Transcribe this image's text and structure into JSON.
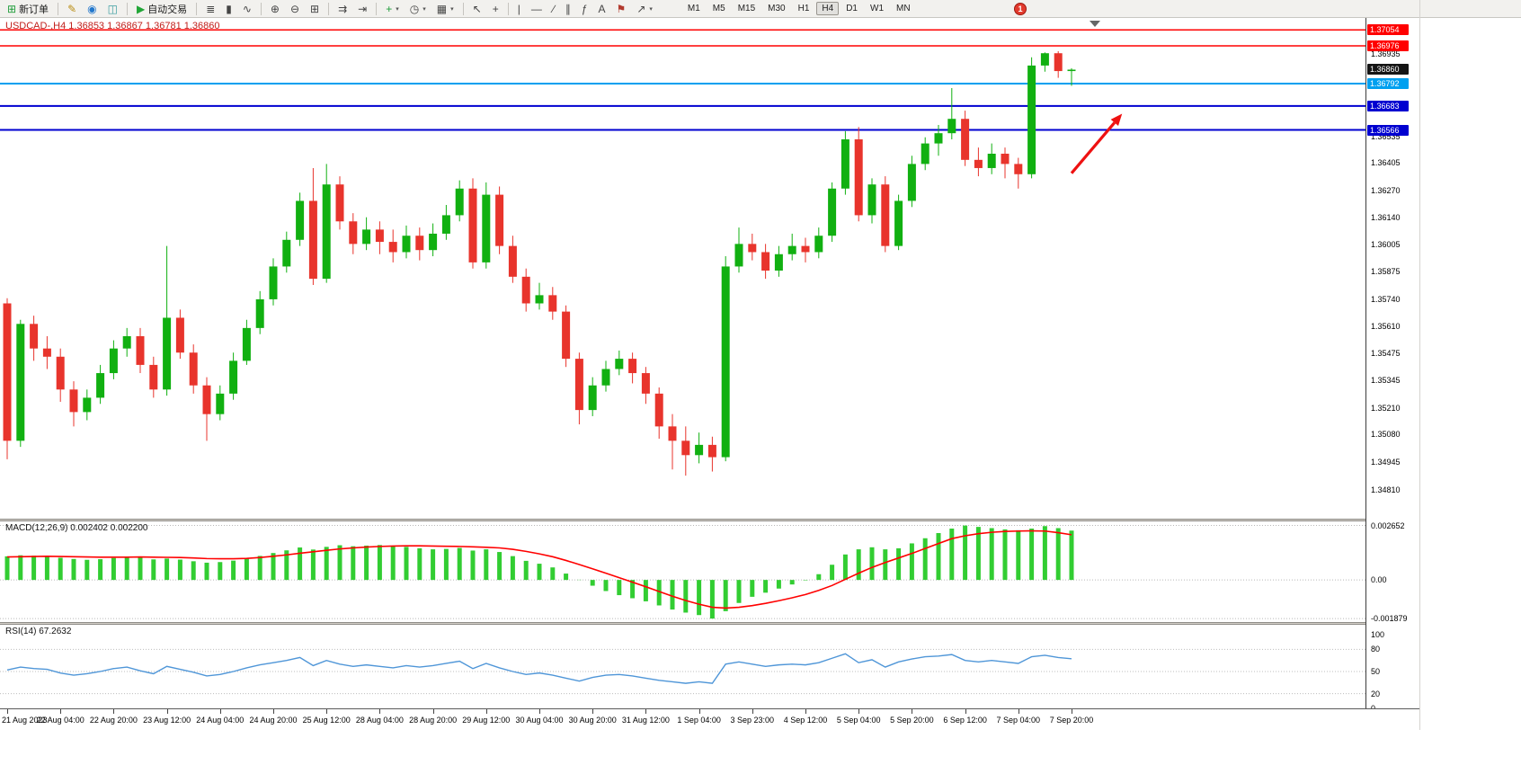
{
  "toolbar": {
    "groups": [
      {
        "items": [
          {
            "name": "new-order-button",
            "icon": "new-order-icon",
            "glyph": "⊞",
            "glyph_color": "#1f9d3a",
            "label": "新订单"
          }
        ]
      },
      {
        "items": [
          {
            "name": "metaeditor-button",
            "icon": "metaeditor-icon",
            "glyph": "✎",
            "glyph_color": "#b98c12"
          },
          {
            "name": "market-watch-button",
            "icon": "market-watch-icon",
            "glyph": "◉",
            "glyph_color": "#2277cc"
          },
          {
            "name": "navigator-button",
            "icon": "navigator-icon",
            "glyph": "◫",
            "glyph_color": "#3a9da0"
          }
        ]
      },
      {
        "items": [
          {
            "name": "auto-trading-button",
            "icon": "play-icon",
            "glyph": "▶",
            "glyph_color": "#21a637",
            "label": "自动交易"
          }
        ]
      },
      {
        "items": [
          {
            "name": "bar-chart-button",
            "icon": "ohlc-bars-icon",
            "glyph": "≣"
          },
          {
            "name": "candlestick-button",
            "icon": "candlestick-icon",
            "glyph": "▮"
          },
          {
            "name": "line-chart-button",
            "icon": "line-chart-icon",
            "glyph": "∿"
          }
        ]
      },
      {
        "items": [
          {
            "name": "zoom-in-button",
            "icon": "zoom-in-icon",
            "glyph": "⊕"
          },
          {
            "name": "zoom-out-button",
            "icon": "zoom-out-icon",
            "glyph": "⊖"
          },
          {
            "name": "tile-windows-button",
            "icon": "tile-windows-icon",
            "glyph": "⊞"
          }
        ]
      },
      {
        "items": [
          {
            "name": "auto-scroll-button",
            "icon": "auto-scroll-icon",
            "glyph": "⇉"
          },
          {
            "name": "chart-shift-button",
            "icon": "chart-shift-icon",
            "glyph": "⇥"
          }
        ]
      },
      {
        "items": [
          {
            "name": "indicators-button",
            "icon": "indicators-icon",
            "glyph": "+",
            "glyph_color": "#1f9d3a",
            "caret": true
          },
          {
            "name": "periods-button",
            "icon": "clock-icon",
            "glyph": "◷",
            "caret": true
          },
          {
            "name": "templates-button",
            "icon": "template-icon",
            "glyph": "▦",
            "caret": true
          }
        ]
      },
      {
        "items": [
          {
            "name": "cursor-button",
            "icon": "cursor-icon",
            "glyph": "↖"
          },
          {
            "name": "crosshair-button",
            "icon": "crosshair-icon",
            "glyph": "+"
          }
        ]
      },
      {
        "items": [
          {
            "name": "vertical-line-button",
            "icon": "vertical-line-icon",
            "glyph": "|"
          },
          {
            "name": "horizontal-line-button",
            "icon": "horizontal-line-icon",
            "glyph": "―"
          },
          {
            "name": "trendline-button",
            "icon": "trendline-icon",
            "glyph": "∕"
          },
          {
            "name": "channel-button",
            "icon": "channel-icon",
            "glyph": "∥"
          },
          {
            "name": "fibonacci-button",
            "icon": "fibonacci-icon",
            "glyph": "ƒ"
          },
          {
            "name": "text-button",
            "icon": "text-icon",
            "glyph": "A"
          },
          {
            "name": "label-button",
            "icon": "label-icon",
            "glyph": "⚑",
            "glyph_color": "#b23a2e"
          },
          {
            "name": "arrows-button",
            "icon": "arrow-objects-icon",
            "glyph": "↗",
            "caret": true
          }
        ]
      }
    ],
    "timeframes": [
      {
        "label": "M1"
      },
      {
        "label": "M5"
      },
      {
        "label": "M15"
      },
      {
        "label": "M30"
      },
      {
        "label": "H1"
      },
      {
        "label": "H4",
        "active": true
      },
      {
        "label": "D1"
      },
      {
        "label": "W1"
      },
      {
        "label": "MN"
      }
    ],
    "notification_count": "1"
  },
  "price_axis": {
    "badges": [
      {
        "text": "1.37054",
        "price": 1.37054,
        "bg": "#ff0000"
      },
      {
        "text": "1.36976",
        "price": 1.36976,
        "bg": "#ff0000"
      },
      {
        "text": "1.36860",
        "price": 1.3686,
        "bg": "#151515",
        "name": "bid-price-badge"
      },
      {
        "text": "1.36792",
        "price": 1.36792,
        "bg": "#00a0f0"
      },
      {
        "text": "1.36683",
        "price": 1.36683,
        "bg": "#0000d0"
      },
      {
        "text": "1.36566",
        "price": 1.36566,
        "bg": "#0000d0"
      }
    ],
    "ticks": [
      "1.36935",
      "1.36535",
      "1.36405",
      "1.36270",
      "1.36140",
      "1.36005",
      "1.35875",
      "1.35740",
      "1.35610",
      "1.35475",
      "1.35345",
      "1.35210",
      "1.35080",
      "1.34945",
      "1.34810"
    ]
  },
  "chart_data": {
    "type": "candlestick",
    "symbol": "USDCAD-",
    "timeframe": "H4",
    "title": "USDCAD-,H4 1.36853 1.36867 1.36781 1.36860",
    "ohlc_display": {
      "open": "1.36853",
      "high": "1.36867",
      "low": "1.36781",
      "close": "1.36860"
    },
    "ylim": [
      1.3467,
      1.3709
    ],
    "colors": {
      "up": "#11b011",
      "down": "#e8342c",
      "macd_hist": "#32cd32",
      "macd_signal": "#ff0000",
      "rsi_line": "#4f96d8"
    },
    "hlines": [
      {
        "price": 1.37054,
        "color": "#ff0000",
        "width": 1.5
      },
      {
        "price": 1.36976,
        "color": "#ff0000",
        "width": 1.5
      },
      {
        "price": 1.36792,
        "color": "#00a0f0",
        "width": 2
      },
      {
        "price": 1.36683,
        "color": "#0000d0",
        "width": 2
      },
      {
        "price": 1.36566,
        "color": "#0000d0",
        "width": 2
      }
    ],
    "arrow": {
      "from": {
        "ci": 80,
        "price": 1.36355
      },
      "to": {
        "ci": 83.8,
        "price": 1.36645
      },
      "color": "#ee1111"
    },
    "candles": [
      [
        1.3572,
        1.35745,
        1.3496,
        1.3505
      ],
      [
        1.3505,
        1.3564,
        1.3502,
        1.3562
      ],
      [
        1.3562,
        1.3566,
        1.3544,
        1.355
      ],
      [
        1.355,
        1.3556,
        1.354,
        1.3546
      ],
      [
        1.3546,
        1.355,
        1.3524,
        1.353
      ],
      [
        1.353,
        1.3534,
        1.3512,
        1.3519
      ],
      [
        1.3519,
        1.353,
        1.3515,
        1.3526
      ],
      [
        1.3526,
        1.3542,
        1.3523,
        1.3538
      ],
      [
        1.3538,
        1.3554,
        1.3535,
        1.355
      ],
      [
        1.355,
        1.356,
        1.3546,
        1.3556
      ],
      [
        1.3556,
        1.356,
        1.3538,
        1.3542
      ],
      [
        1.3542,
        1.3546,
        1.3526,
        1.353
      ],
      [
        1.353,
        1.36,
        1.3527,
        1.3565
      ],
      [
        1.3565,
        1.3569,
        1.3545,
        1.3548
      ],
      [
        1.3548,
        1.3552,
        1.3528,
        1.3532
      ],
      [
        1.3532,
        1.3536,
        1.3505,
        1.3518
      ],
      [
        1.3518,
        1.3532,
        1.3515,
        1.3528
      ],
      [
        1.3528,
        1.3548,
        1.3525,
        1.3544
      ],
      [
        1.3544,
        1.3564,
        1.3542,
        1.356
      ],
      [
        1.356,
        1.3578,
        1.3557,
        1.3574
      ],
      [
        1.3574,
        1.3594,
        1.3571,
        1.359
      ],
      [
        1.359,
        1.3607,
        1.3587,
        1.3603
      ],
      [
        1.3603,
        1.3626,
        1.36,
        1.3622
      ],
      [
        1.3622,
        1.3638,
        1.3581,
        1.3584
      ],
      [
        1.3584,
        1.364,
        1.3582,
        1.363
      ],
      [
        1.363,
        1.3634,
        1.3608,
        1.3612
      ],
      [
        1.3612,
        1.3616,
        1.3596,
        1.3601
      ],
      [
        1.3601,
        1.3614,
        1.3598,
        1.3608
      ],
      [
        1.3608,
        1.3612,
        1.3596,
        1.3602
      ],
      [
        1.3602,
        1.3608,
        1.3592,
        1.3597
      ],
      [
        1.3597,
        1.361,
        1.3594,
        1.3605
      ],
      [
        1.3605,
        1.3609,
        1.3593,
        1.3598
      ],
      [
        1.3598,
        1.3611,
        1.3595,
        1.3606
      ],
      [
        1.3606,
        1.362,
        1.3603,
        1.3615
      ],
      [
        1.3615,
        1.3632,
        1.3612,
        1.3628
      ],
      [
        1.3628,
        1.3633,
        1.3589,
        1.3592
      ],
      [
        1.3592,
        1.3631,
        1.3589,
        1.3625
      ],
      [
        1.3625,
        1.3629,
        1.3596,
        1.36
      ],
      [
        1.36,
        1.3605,
        1.3582,
        1.3585
      ],
      [
        1.3585,
        1.3589,
        1.3568,
        1.3572
      ],
      [
        1.3572,
        1.3582,
        1.3569,
        1.3576
      ],
      [
        1.3576,
        1.358,
        1.3564,
        1.3568
      ],
      [
        1.3568,
        1.3571,
        1.3541,
        1.3545
      ],
      [
        1.3545,
        1.3548,
        1.3513,
        1.352
      ],
      [
        1.352,
        1.3536,
        1.3517,
        1.3532
      ],
      [
        1.3532,
        1.3544,
        1.3529,
        1.354
      ],
      [
        1.354,
        1.3549,
        1.3537,
        1.3545
      ],
      [
        1.3545,
        1.3548,
        1.3533,
        1.3538
      ],
      [
        1.3538,
        1.3541,
        1.3523,
        1.3528
      ],
      [
        1.3528,
        1.3531,
        1.3506,
        1.3512
      ],
      [
        1.3512,
        1.3518,
        1.3491,
        1.3505
      ],
      [
        1.3505,
        1.3512,
        1.3488,
        1.3498
      ],
      [
        1.3498,
        1.3509,
        1.3494,
        1.3503
      ],
      [
        1.3503,
        1.3507,
        1.349,
        1.3497
      ],
      [
        1.3497,
        1.3595,
        1.3495,
        1.359
      ],
      [
        1.359,
        1.3609,
        1.3587,
        1.3601
      ],
      [
        1.3601,
        1.3606,
        1.3593,
        1.3597
      ],
      [
        1.3597,
        1.3601,
        1.3584,
        1.3588
      ],
      [
        1.3588,
        1.36,
        1.3585,
        1.3596
      ],
      [
        1.3596,
        1.3606,
        1.3593,
        1.36
      ],
      [
        1.36,
        1.3604,
        1.3592,
        1.3597
      ],
      [
        1.3597,
        1.3609,
        1.3594,
        1.3605
      ],
      [
        1.3605,
        1.3631,
        1.3602,
        1.3628
      ],
      [
        1.3628,
        1.3656,
        1.3625,
        1.3652
      ],
      [
        1.3652,
        1.3658,
        1.3612,
        1.3615
      ],
      [
        1.3615,
        1.3633,
        1.3611,
        1.363
      ],
      [
        1.363,
        1.3634,
        1.3597,
        1.36
      ],
      [
        1.36,
        1.3625,
        1.3598,
        1.3622
      ],
      [
        1.3622,
        1.3644,
        1.3619,
        1.364
      ],
      [
        1.364,
        1.3653,
        1.3637,
        1.365
      ],
      [
        1.365,
        1.3659,
        1.3644,
        1.3655
      ],
      [
        1.3655,
        1.3677,
        1.3652,
        1.3662
      ],
      [
        1.3662,
        1.3666,
        1.3639,
        1.3642
      ],
      [
        1.3642,
        1.3648,
        1.3634,
        1.3638
      ],
      [
        1.3638,
        1.365,
        1.3635,
        1.3645
      ],
      [
        1.3645,
        1.3648,
        1.3633,
        1.364
      ],
      [
        1.364,
        1.3643,
        1.3628,
        1.3635
      ],
      [
        1.3635,
        1.3692,
        1.3633,
        1.3688
      ],
      [
        1.3688,
        1.36944,
        1.3685,
        1.3694
      ],
      [
        1.3694,
        1.3695,
        1.3682,
        1.36853
      ],
      [
        1.36853,
        1.36867,
        1.36781,
        1.3686
      ]
    ],
    "time_labels": [
      {
        "text": "21 Aug 2023",
        "ci": 0
      },
      {
        "text": "22 Aug 04:00",
        "ci": 4
      },
      {
        "text": "22 Aug 20:00",
        "ci": 8
      },
      {
        "text": "23 Aug 12:00",
        "ci": 12
      },
      {
        "text": "24 Aug 04:00",
        "ci": 16
      },
      {
        "text": "24 Aug 20:00",
        "ci": 20
      },
      {
        "text": "25 Aug 12:00",
        "ci": 24
      },
      {
        "text": "28 Aug 04:00",
        "ci": 28
      },
      {
        "text": "28 Aug 20:00",
        "ci": 32
      },
      {
        "text": "29 Aug 12:00",
        "ci": 36
      },
      {
        "text": "30 Aug 04:00",
        "ci": 40
      },
      {
        "text": "30 Aug 20:00",
        "ci": 44
      },
      {
        "text": "31 Aug 12:00",
        "ci": 48
      },
      {
        "text": "1 Sep 04:00",
        "ci": 52
      },
      {
        "text": "3 Sep 23:00",
        "ci": 56
      },
      {
        "text": "4 Sep 12:00",
        "ci": 60
      },
      {
        "text": "5 Sep 04:00",
        "ci": 64
      },
      {
        "text": "5 Sep 20:00",
        "ci": 68
      },
      {
        "text": "6 Sep 12:00",
        "ci": 72
      },
      {
        "text": "7 Sep 04:00",
        "ci": 76
      },
      {
        "text": "7 Sep 20:00",
        "ci": 80
      }
    ],
    "macd": {
      "label": "MACD(12,26,9) 0.002402 0.002200",
      "axis_labels": [
        "0.002652",
        "0.00",
        "-0.001879"
      ],
      "grid": [
        0.002652,
        0,
        -0.001879
      ],
      "ylim": [
        -0.00205,
        0.00285
      ],
      "histogram": [
        0.00115,
        0.0012,
        0.00118,
        0.00114,
        0.00108,
        0.00102,
        0.00098,
        0.00101,
        0.00107,
        0.00112,
        0.00108,
        0.001,
        0.00104,
        0.00099,
        0.00091,
        0.00084,
        0.00087,
        0.00094,
        0.00104,
        0.00117,
        0.00131,
        0.00144,
        0.00158,
        0.00148,
        0.00161,
        0.00169,
        0.00164,
        0.00167,
        0.0017,
        0.00166,
        0.00161,
        0.00154,
        0.00149,
        0.00151,
        0.00156,
        0.00143,
        0.00149,
        0.00136,
        0.00116,
        0.00093,
        0.00079,
        0.00061,
        0.00031,
        1e-05,
        -0.00028,
        -0.00054,
        -0.00074,
        -0.00089,
        -0.00104,
        -0.00124,
        -0.00144,
        -0.00159,
        -0.00171,
        -0.00188,
        -0.00152,
        -0.00112,
        -0.00082,
        -0.00062,
        -0.00042,
        -0.00022,
        -2e-05,
        0.00028,
        0.00074,
        0.00124,
        0.00149,
        0.00159,
        0.00149,
        0.00154,
        0.00178,
        0.00203,
        0.00228,
        0.0025,
        0.00265,
        0.00258,
        0.00252,
        0.00246,
        0.00242,
        0.0025,
        0.00262,
        0.00252,
        0.0024
      ],
      "signal": [
        0.00112,
        0.00113,
        0.00114,
        0.00115,
        0.00114,
        0.00113,
        0.00112,
        0.00111,
        0.00111,
        0.00111,
        0.00112,
        0.00111,
        0.0011,
        0.00109,
        0.00107,
        0.00104,
        0.00103,
        0.00103,
        0.00105,
        0.00109,
        0.00115,
        0.00122,
        0.0013,
        0.00137,
        0.00144,
        0.00151,
        0.00156,
        0.0016,
        0.00163,
        0.00165,
        0.00166,
        0.00166,
        0.00165,
        0.00164,
        0.00163,
        0.00161,
        0.00159,
        0.00156,
        0.00149,
        0.00139,
        0.00127,
        0.00113,
        0.00095,
        0.00075,
        0.00054,
        0.00033,
        0.00011,
        -0.00011,
        -0.00033,
        -0.00056,
        -0.00079,
        -0.001,
        -0.00118,
        -0.00133,
        -0.00137,
        -0.00133,
        -0.00125,
        -0.00114,
        -0.00101,
        -0.00087,
        -0.00071,
        -0.00051,
        -0.00027,
        3e-05,
        0.00033,
        0.00061,
        0.00085,
        0.00107,
        0.00129,
        0.00153,
        0.00177,
        0.00201,
        0.00215,
        0.00225,
        0.00232,
        0.00236,
        0.00238,
        0.00239,
        0.00238,
        0.0023,
        0.0022
      ]
    },
    "rsi": {
      "label": "RSI(14) 67.2632",
      "axis_labels": [
        "100",
        "80",
        "50",
        "20",
        "0"
      ],
      "level_lines": [
        80,
        50,
        20
      ],
      "ylim": [
        0,
        100
      ],
      "values": [
        52,
        56,
        54,
        53,
        48,
        45,
        47,
        50,
        54,
        56,
        51,
        47,
        57,
        53,
        49,
        44,
        46,
        50,
        55,
        59,
        62,
        65,
        69,
        58,
        65,
        60,
        57,
        59,
        57,
        55,
        58,
        56,
        58,
        61,
        64,
        54,
        61,
        55,
        50,
        46,
        48,
        45,
        41,
        37,
        42,
        45,
        46,
        44,
        41,
        38,
        36,
        34,
        36,
        34,
        60,
        63,
        60,
        57,
        59,
        60,
        59,
        62,
        68,
        74,
        62,
        66,
        56,
        63,
        67,
        70,
        71,
        73,
        65,
        63,
        65,
        63,
        61,
        70,
        72,
        69,
        67.26
      ]
    }
  }
}
